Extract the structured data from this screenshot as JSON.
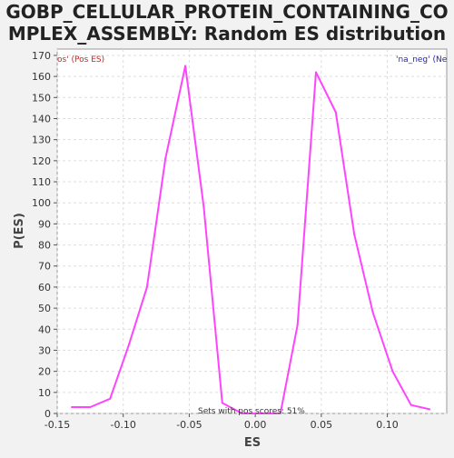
{
  "chart_data": {
    "type": "line",
    "title_line1": "GOBP_CELLULAR_PROTEIN_CONTAINING_CO",
    "title_line2": "MPLEX_ASSEMBLY: Random ES distribution",
    "xlabel": "ES",
    "ylabel": "P(ES)",
    "xlim": [
      -0.15,
      0.145
    ],
    "ylim": [
      0,
      173
    ],
    "x_ticks": [
      -0.15,
      -0.1,
      -0.05,
      0.0,
      0.05,
      0.1
    ],
    "x_tick_labels": [
      "-0.15",
      "-0.10",
      "-0.05",
      "0.00",
      "0.05",
      "0.10"
    ],
    "y_ticks": [
      0,
      10,
      20,
      30,
      40,
      50,
      60,
      70,
      80,
      90,
      100,
      110,
      120,
      130,
      140,
      150,
      160,
      170
    ],
    "grid": true,
    "legend_left": "os' (Pos ES)",
    "legend_right": "'na_neg' (Ne",
    "annotation": "Sets with pos scores: 51%",
    "colors": {
      "line": "#ff44ff",
      "legend_left": "#cc2222",
      "legend_right": "#2222bb",
      "background": "#f2f2f2",
      "plot_bg": "#ffffff",
      "grid": "#dddddd"
    },
    "series": [
      {
        "points": [
          [
            -0.139,
            3
          ],
          [
            -0.125,
            3
          ],
          [
            -0.11,
            7
          ],
          [
            -0.096,
            32
          ],
          [
            -0.082,
            60
          ],
          [
            -0.068,
            121
          ],
          [
            -0.053,
            165
          ],
          [
            -0.039,
            98
          ],
          [
            -0.025,
            5
          ],
          [
            -0.01,
            0
          ],
          [
            0.004,
            0
          ],
          [
            0.019,
            0
          ],
          [
            0.032,
            42
          ],
          [
            0.046,
            162
          ],
          [
            0.061,
            143
          ],
          [
            0.075,
            85
          ],
          [
            0.089,
            48
          ],
          [
            0.104,
            20
          ],
          [
            0.118,
            4
          ],
          [
            0.132,
            2
          ]
        ]
      }
    ]
  }
}
